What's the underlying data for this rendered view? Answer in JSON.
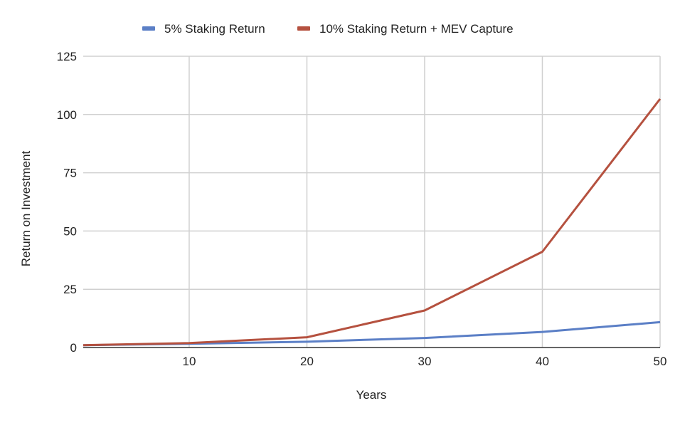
{
  "chart_data": {
    "type": "line",
    "title": "",
    "xlabel": "Years",
    "ylabel": "Return on Investment",
    "xlim": [
      1,
      50
    ],
    "ylim": [
      0,
      125
    ],
    "xticks": [
      10,
      20,
      30,
      40,
      50
    ],
    "yticks": [
      0,
      25,
      50,
      75,
      100,
      125
    ],
    "grid": true,
    "legend_position": "top",
    "x": [
      1,
      10,
      20,
      30,
      40,
      50
    ],
    "series": [
      {
        "name": "5% Staking Return",
        "color": "#5b7fc6",
        "values": [
          1.0,
          1.6,
          2.5,
          4.1,
          6.7,
          10.9
        ]
      },
      {
        "name": "10% Staking Return + MEV Capture",
        "color": "#b5513f",
        "values": [
          1.0,
          1.9,
          4.4,
          15.9,
          41.1,
          106.7
        ]
      }
    ]
  }
}
